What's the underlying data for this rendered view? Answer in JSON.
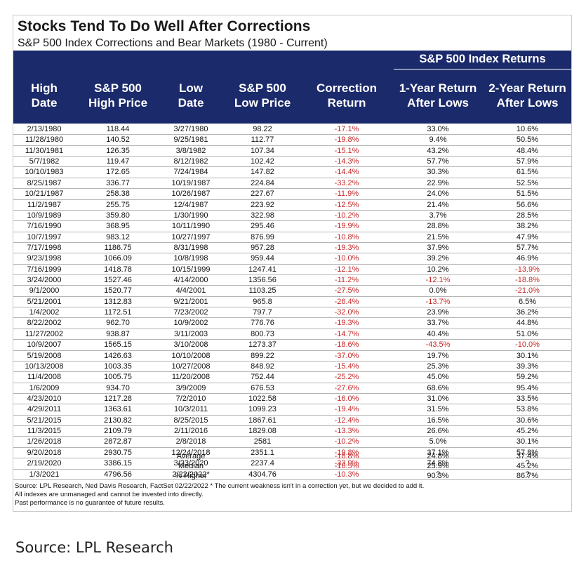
{
  "title": "Stocks Tend To Do Well After Corrections",
  "subtitle": "S&P 500 Index Corrections and Bear Markets (1980 - Current)",
  "header_band": "S&P 500 Index Returns",
  "columns": [
    [
      "High",
      "Date"
    ],
    [
      "S&P 500",
      "High Price"
    ],
    [
      "Low",
      "Date"
    ],
    [
      "S&P 500",
      "Low Price"
    ],
    [
      "Correction",
      "Return"
    ],
    [
      "1-Year Return",
      "After Lows"
    ],
    [
      "2-Year Return",
      "After Lows"
    ]
  ],
  "rows": [
    [
      "2/13/1980",
      "118.44",
      "3/27/1980",
      "98.22",
      "-17.1%",
      "33.0%",
      "10.6%"
    ],
    [
      "11/28/1980",
      "140.52",
      "9/25/1981",
      "112.77",
      "-19.8%",
      "9.4%",
      "50.5%"
    ],
    [
      "11/30/1981",
      "126.35",
      "3/8/1982",
      "107.34",
      "-15.1%",
      "43.2%",
      "48.4%"
    ],
    [
      "5/7/1982",
      "119.47",
      "8/12/1982",
      "102.42",
      "-14.3%",
      "57.7%",
      "57.9%"
    ],
    [
      "10/10/1983",
      "172.65",
      "7/24/1984",
      "147.82",
      "-14.4%",
      "30.3%",
      "61.5%"
    ],
    [
      "8/25/1987",
      "336.77",
      "10/19/1987",
      "224.84",
      "-33.2%",
      "22.9%",
      "52.5%"
    ],
    [
      "10/21/1987",
      "258.38",
      "10/26/1987",
      "227.67",
      "-11.9%",
      "24.0%",
      "51.5%"
    ],
    [
      "11/2/1987",
      "255.75",
      "12/4/1987",
      "223.92",
      "-12.5%",
      "21.4%",
      "56.6%"
    ],
    [
      "10/9/1989",
      "359.80",
      "1/30/1990",
      "322.98",
      "-10.2%",
      "3.7%",
      "28.5%"
    ],
    [
      "7/16/1990",
      "368.95",
      "10/11/1990",
      "295.46",
      "-19.9%",
      "28.8%",
      "38.2%"
    ],
    [
      "10/7/1997",
      "983.12",
      "10/27/1997",
      "876.99",
      "-10.8%",
      "21.5%",
      "47.9%"
    ],
    [
      "7/17/1998",
      "1186.75",
      "8/31/1998",
      "957.28",
      "-19.3%",
      "37.9%",
      "57.7%"
    ],
    [
      "9/23/1998",
      "1066.09",
      "10/8/1998",
      "959.44",
      "-10.0%",
      "39.2%",
      "46.9%"
    ],
    [
      "7/16/1999",
      "1418.78",
      "10/15/1999",
      "1247.41",
      "-12.1%",
      "10.2%",
      "-13.9%"
    ],
    [
      "3/24/2000",
      "1527.46",
      "4/14/2000",
      "1356.56",
      "-11.2%",
      "-12.1%",
      "-18.8%"
    ],
    [
      "9/1/2000",
      "1520.77",
      "4/4/2001",
      "1103.25",
      "-27.5%",
      "0.0%",
      "-21.0%"
    ],
    [
      "5/21/2001",
      "1312.83",
      "9/21/2001",
      "965.8",
      "-26.4%",
      "-13.7%",
      "6.5%"
    ],
    [
      "1/4/2002",
      "1172.51",
      "7/23/2002",
      "797.7",
      "-32.0%",
      "23.9%",
      "36.2%"
    ],
    [
      "8/22/2002",
      "962.70",
      "10/9/2002",
      "776.76",
      "-19.3%",
      "33.7%",
      "44.8%"
    ],
    [
      "11/27/2002",
      "938.87",
      "3/11/2003",
      "800.73",
      "-14.7%",
      "40.4%",
      "51.0%"
    ],
    [
      "10/9/2007",
      "1565.15",
      "3/10/2008",
      "1273.37",
      "-18.6%",
      "-43.5%",
      "-10.0%"
    ],
    [
      "5/19/2008",
      "1426.63",
      "10/10/2008",
      "899.22",
      "-37.0%",
      "19.7%",
      "30.1%"
    ],
    [
      "10/13/2008",
      "1003.35",
      "10/27/2008",
      "848.92",
      "-15.4%",
      "25.3%",
      "39.3%"
    ],
    [
      "11/4/2008",
      "1005.75",
      "11/20/2008",
      "752.44",
      "-25.2%",
      "45.0%",
      "59.2%"
    ],
    [
      "1/6/2009",
      "934.70",
      "3/9/2009",
      "676.53",
      "-27.6%",
      "68.6%",
      "95.4%"
    ],
    [
      "4/23/2010",
      "1217.28",
      "7/2/2010",
      "1022.58",
      "-16.0%",
      "31.0%",
      "33.5%"
    ],
    [
      "4/29/2011",
      "1363.61",
      "10/3/2011",
      "1099.23",
      "-19.4%",
      "31.5%",
      "53.8%"
    ],
    [
      "5/21/2015",
      "2130.82",
      "8/25/2015",
      "1867.61",
      "-12.4%",
      "16.5%",
      "30.6%"
    ],
    [
      "11/3/2015",
      "2109.79",
      "2/11/2016",
      "1829.08",
      "-13.3%",
      "26.6%",
      "45.2%"
    ],
    [
      "1/26/2018",
      "2872.87",
      "2/8/2018",
      "2581",
      "-10.2%",
      "5.0%",
      "30.1%"
    ],
    [
      "9/20/2018",
      "2930.75",
      "12/24/2018",
      "2351.1",
      "-19.8%",
      "37.1%",
      "57.8%"
    ],
    [
      "2/19/2020",
      "3386.15",
      "3/23/2020",
      "2237.4",
      "-33.9%",
      "74.8%",
      "?"
    ],
    [
      "1/3/2021",
      "4796.56",
      "2/22/2022*",
      "4304.76",
      "-10.3%",
      "?",
      "?"
    ]
  ],
  "summary": [
    [
      "Average",
      "-18.8%",
      "24.8%",
      "37.4%"
    ],
    [
      "Median",
      "-16.5%",
      "25.9%",
      "45.2%"
    ],
    [
      "% Higher",
      "",
      "90.3%",
      "86.7%"
    ]
  ],
  "notes": [
    "Source: LPL Research, Ned Davis Research, FactSet 02/22/2022  * The current weakness isn't in a correction yet, but we decided to add it.",
    "All indexes are unmanaged and cannot be invested into directly.",
    "Past performance is no guarantee of future results."
  ],
  "caption": "Source: LPL Research",
  "colors": {
    "header_bg": "#1b2a6b",
    "negative": "#c62828"
  }
}
